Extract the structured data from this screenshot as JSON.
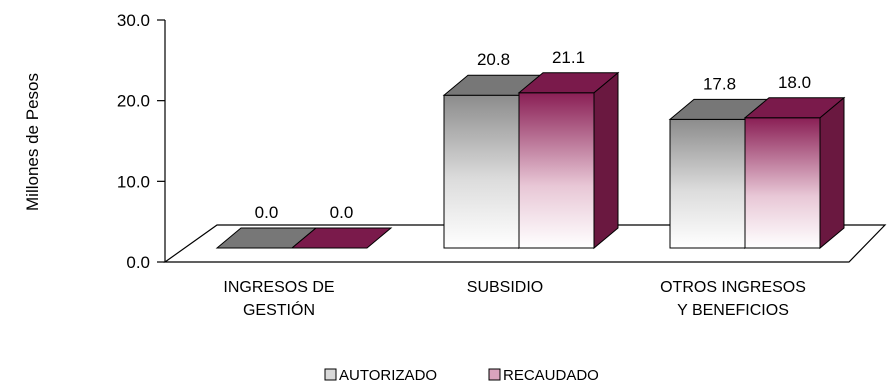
{
  "chart_data": {
    "type": "bar",
    "categories": [
      [
        "INGRESOS DE",
        "GESTIÓN"
      ],
      [
        "SUBSIDIO"
      ],
      [
        "OTROS INGRESOS",
        "Y BENEFICIOS"
      ]
    ],
    "series": [
      {
        "name": "AUTORIZADO",
        "values": [
          0.0,
          20.8,
          17.8
        ],
        "color": "#9a9a9a"
      },
      {
        "name": "RECAUDADO",
        "values": [
          0.0,
          21.1,
          18.0
        ],
        "color": "#8a1f55"
      }
    ],
    "ylabel": "Millones de Pesos",
    "ylim": [
      0,
      30
    ],
    "yticks": [
      "0.0",
      "10.0",
      "20.0",
      "30.0"
    ],
    "ytick_values": [
      0,
      10,
      20,
      30
    ],
    "legend": "bottom",
    "grid": false
  }
}
